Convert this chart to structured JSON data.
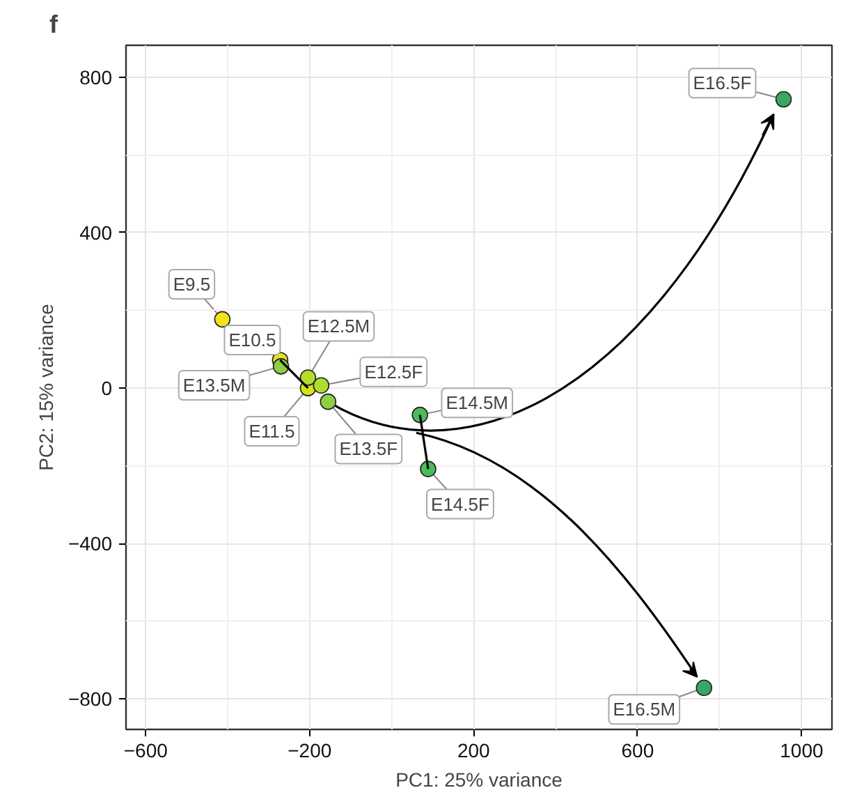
{
  "chart_data": {
    "type": "scatter",
    "title": "f",
    "xlabel": "PC1: 25% variance",
    "ylabel": "PC2: 15% variance",
    "xlim": [
      -648,
      1074
    ],
    "ylim": [
      -878,
      882
    ],
    "xticks": [
      -600,
      -200,
      200,
      600,
      1000
    ],
    "yticks": [
      -800,
      -400,
      0,
      400,
      800
    ],
    "grid": true,
    "series": [
      {
        "marker": "circle",
        "x": [
          -413,
          -272,
          -204,
          -204,
          -172,
          -270,
          -155,
          69,
          89,
          956,
          762
        ],
        "values": [
          177,
          72,
          0,
          27,
          7,
          56,
          -35,
          -69,
          -208,
          743,
          -771
        ],
        "colors": [
          "#f4e21c",
          "#e6e01f",
          "#d4e21a",
          "#b6dd2c",
          "#b0dc30",
          "#8dd044",
          "#8fd046",
          "#4cbb59",
          "#4cbb59",
          "#3aa864",
          "#3aa864"
        ]
      },
      {
        "type": "line",
        "marker": "none",
        "color": "#000000",
        "x": [
          69,
          89
        ],
        "values": [
          -69,
          -208
        ]
      }
    ],
    "annotations": [
      {
        "text": "E9.5",
        "x": -413,
        "y": 177
      },
      {
        "text": "E10.5",
        "x": -272,
        "y": 72
      },
      {
        "text": "E11.5",
        "x": -204,
        "y": 0
      },
      {
        "text": "E12.5M",
        "x": -204,
        "y": 27
      },
      {
        "text": "E12.5F",
        "x": -172,
        "y": 7
      },
      {
        "text": "E13.5M",
        "x": -270,
        "y": 56
      },
      {
        "text": "E13.5F",
        "x": -155,
        "y": -35
      },
      {
        "text": "E14.5M",
        "x": 69,
        "y": -69
      },
      {
        "text": "E14.5F",
        "x": 89,
        "y": -208
      },
      {
        "text": "E16.5F",
        "x": 956,
        "y": 743
      },
      {
        "text": "E16.5M",
        "x": 762,
        "y": -771
      }
    ]
  }
}
